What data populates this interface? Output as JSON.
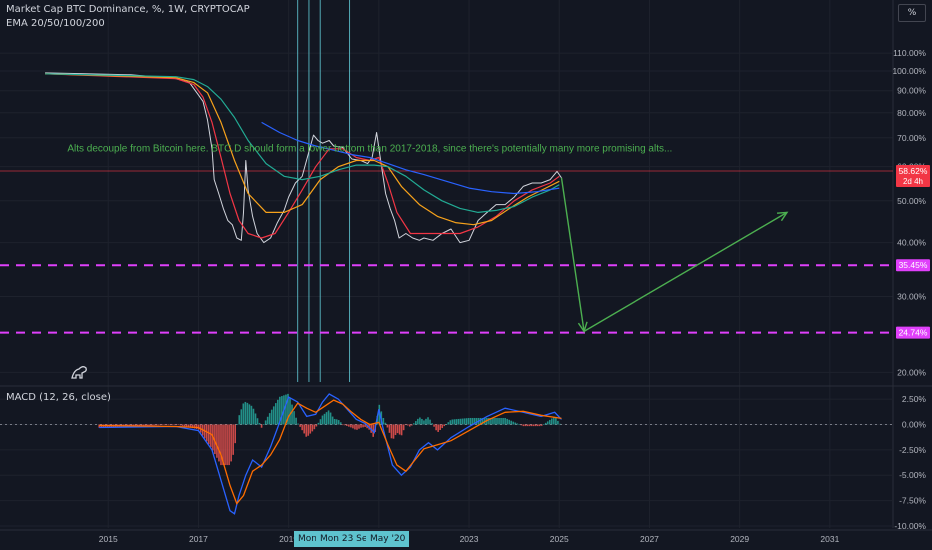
{
  "header": {
    "symbol_line": "Market Cap BTC Dominance, %, 1W, CRYPTOCAP",
    "ema_line": "EMA 20/50/100/200",
    "macd_line": "MACD (12, 26, close)",
    "percent_toggle": "%"
  },
  "annotation": "Alts decouple from Bitcoin here. BTC.D should form a lower bottom than 2017-2018, since there's potentially many more promising alts...",
  "crosshair_tip": {
    "left_label": "Mon",
    "mid_label": "Mon 23 Sep '19",
    "right_label": "May '20"
  },
  "colors": {
    "background": "#131722",
    "price": "#d1d4dc",
    "ema20": "#f23645",
    "ema50": "#f7a21b",
    "ema100": "#22ab94",
    "ema200": "#2962ff",
    "dashed_level": "#e040fb",
    "arrow": "#4caf50",
    "macd_line": "#2962ff",
    "signal_line": "#ff6d00",
    "hist_pos": "#26a69a",
    "hist_neg": "#ef5350"
  },
  "chart_data": {
    "type": "line",
    "main_pane": {
      "y_scale": "log",
      "ylim": [
        19,
        118
      ],
      "y_ticks": [
        {
          "value": 110,
          "label": "110.00%"
        },
        {
          "value": 100,
          "label": "100.00%"
        },
        {
          "value": 90,
          "label": "90.00%"
        },
        {
          "value": 80,
          "label": "80.00%"
        },
        {
          "value": 70,
          "label": "70.00%"
        },
        {
          "value": 60,
          "label": "60.00%"
        },
        {
          "value": 50,
          "label": "50.00%"
        },
        {
          "value": 40,
          "label": "40.00%"
        },
        {
          "value": 30,
          "label": "30.00%"
        },
        {
          "value": 20,
          "label": "20.00%"
        }
      ],
      "x_ticks": [
        {
          "value": 2015,
          "label": "2015"
        },
        {
          "value": 2017,
          "label": "2017"
        },
        {
          "value": 2019,
          "label": "2019"
        },
        {
          "value": 2021,
          "label": "2021"
        },
        {
          "value": 2023,
          "label": "2023"
        },
        {
          "value": 2025,
          "label": "2025"
        },
        {
          "value": 2027,
          "label": "2027"
        },
        {
          "value": 2029,
          "label": "2029"
        },
        {
          "value": 2031,
          "label": "2031"
        }
      ],
      "xlim": [
        2012.6,
        2032.4
      ],
      "series": [
        {
          "key": "price",
          "x": [
            2013.6,
            2014.5,
            2015.5,
            2016.5,
            2016.8,
            2017.0,
            2017.1,
            2017.2,
            2017.3,
            2017.35,
            2017.45,
            2017.55,
            2017.65,
            2017.75,
            2017.85,
            2017.95,
            2018.0,
            2018.05,
            2018.1,
            2018.2,
            2018.3,
            2018.45,
            2018.6,
            2018.75,
            2018.9,
            2019.0,
            2019.15,
            2019.3,
            2019.45,
            2019.55,
            2019.65,
            2019.75,
            2019.9,
            2020.0,
            2020.2,
            2020.4,
            2020.6,
            2020.75,
            2020.85,
            2020.95,
            2021.05,
            2021.15,
            2021.25,
            2021.35,
            2021.45,
            2021.6,
            2021.75,
            2021.9,
            2022.0,
            2022.2,
            2022.4,
            2022.6,
            2022.8,
            2023.0,
            2023.2,
            2023.4,
            2023.6,
            2023.8,
            2024.0,
            2024.2,
            2024.4,
            2024.6,
            2024.8,
            2024.95,
            2025.05
          ],
          "y": [
            99,
            98.5,
            98,
            96,
            94,
            88,
            85,
            77,
            66,
            56,
            52,
            48,
            45,
            44,
            41,
            40.5,
            47,
            62,
            53,
            46,
            42,
            40,
            41,
            44.5,
            47.5,
            51,
            55,
            57,
            65,
            71,
            69,
            68,
            69,
            67,
            66.5,
            62.5,
            62,
            61,
            63,
            72,
            61,
            52,
            48,
            45,
            41,
            42,
            41,
            40.5,
            41,
            40.5,
            42,
            43,
            40,
            40.5,
            45,
            47,
            49,
            49,
            51,
            54,
            55,
            55,
            56,
            58.5,
            56.5
          ]
        },
        {
          "key": "ema20",
          "x": [
            2013.6,
            2016.5,
            2016.9,
            2017.1,
            2017.3,
            2017.5,
            2017.7,
            2017.9,
            2018.1,
            2018.4,
            2018.7,
            2019.0,
            2019.3,
            2019.6,
            2019.9,
            2020.2,
            2020.5,
            2020.8,
            2021.0,
            2021.2,
            2021.4,
            2021.7,
            2022.0,
            2022.4,
            2022.8,
            2023.2,
            2023.6,
            2024.0,
            2024.4,
            2024.8,
            2025.0
          ],
          "y": [
            98.5,
            96,
            93,
            87,
            76,
            63,
            52,
            45,
            42,
            41,
            42,
            47,
            53,
            60,
            66,
            66,
            63,
            62,
            63,
            55,
            47,
            42,
            42,
            42,
            42,
            43.5,
            46,
            50,
            53,
            55,
            57
          ]
        },
        {
          "key": "ema50",
          "x": [
            2013.6,
            2016.5,
            2016.9,
            2017.2,
            2017.5,
            2017.8,
            2018.1,
            2018.5,
            2018.9,
            2019.3,
            2019.7,
            2020.1,
            2020.5,
            2020.9,
            2021.2,
            2021.5,
            2021.9,
            2022.3,
            2022.7,
            2023.1,
            2023.5,
            2023.9,
            2024.3,
            2024.7,
            2025.0
          ],
          "y": [
            98.5,
            96.5,
            94,
            89,
            76,
            62,
            52,
            47,
            47,
            49,
            56,
            60,
            62,
            62,
            60,
            54,
            49,
            46,
            44.5,
            44,
            45,
            48,
            51,
            53.5,
            55.5
          ]
        },
        {
          "key": "ema100",
          "x": [
            2013.6,
            2016.5,
            2016.9,
            2017.2,
            2017.5,
            2017.8,
            2018.1,
            2018.5,
            2018.9,
            2019.3,
            2019.7,
            2020.1,
            2020.5,
            2020.9,
            2021.2,
            2021.6,
            2022.0,
            2022.4,
            2022.8,
            2023.2,
            2023.6,
            2024.0,
            2024.4,
            2024.8,
            2025.0
          ],
          "y": [
            98.5,
            97,
            95.5,
            92,
            86,
            78,
            69,
            61,
            57,
            56,
            57,
            59,
            60.5,
            60.5,
            60,
            57,
            53,
            50,
            48,
            47,
            47.5,
            48.5,
            51,
            53,
            54.5
          ]
        },
        {
          "key": "ema200",
          "x": [
            2018.4,
            2018.8,
            2019.2,
            2019.6,
            2020.0,
            2020.4,
            2020.8,
            2021.2,
            2021.6,
            2022.0,
            2022.5,
            2023.0,
            2023.5,
            2024.0,
            2024.5,
            2025.0
          ],
          "y": [
            76,
            72,
            69,
            67,
            65.5,
            64,
            63,
            61,
            59,
            57.5,
            55.5,
            53.5,
            52.5,
            52,
            52.5,
            53.5
          ]
        }
      ],
      "price_labels": [
        {
          "value": 58.62,
          "label": "58.62%",
          "sub": "2d 4h"
        },
        {
          "value": 35.45,
          "label": "35.45%"
        },
        {
          "value": 24.74,
          "label": "24.74%"
        }
      ],
      "dashed_levels": [
        35.45,
        24.74
      ],
      "hline": 58.62,
      "projection_arrow": [
        {
          "x": 2025.05,
          "y": 56.5
        },
        {
          "x": 2025.55,
          "y": 24.9
        },
        {
          "x": 2030.05,
          "y": 47
        }
      ],
      "vertical_lines": [
        2019.2,
        2019.45,
        2019.7,
        2020.35
      ]
    },
    "macd_pane": {
      "ylim": [
        -10.2,
        3.2
      ],
      "y_ticks": [
        {
          "value": 2.5,
          "label": "2.50%"
        },
        {
          "value": 0,
          "label": "0.00%"
        },
        {
          "value": -2.5,
          "label": "-2.50%"
        },
        {
          "value": -5,
          "label": "-5.00%"
        },
        {
          "value": -7.5,
          "label": "-7.50%"
        },
        {
          "value": -10,
          "label": "-10.00%"
        }
      ],
      "macd": {
        "x": [
          2014.8,
          2016.5,
          2017.0,
          2017.3,
          2017.5,
          2017.7,
          2017.8,
          2017.9,
          2018.05,
          2018.2,
          2018.4,
          2018.6,
          2018.8,
          2019.0,
          2019.2,
          2019.4,
          2019.6,
          2019.75,
          2019.9,
          2020.1,
          2020.3,
          2020.5,
          2020.7,
          2020.9,
          2021.0,
          2021.1,
          2021.3,
          2021.5,
          2021.7,
          2021.9,
          2022.1,
          2022.3,
          2022.6,
          2023.0,
          2023.4,
          2023.8,
          2024.2,
          2024.6,
          2024.9,
          2025.05
        ],
        "y": [
          -0.3,
          -0.2,
          -0.6,
          -2.5,
          -5.5,
          -8.5,
          -8.8,
          -7.0,
          -5.0,
          -3.5,
          -4.2,
          -2.2,
          0.2,
          2.7,
          2.2,
          0.8,
          1.0,
          2.2,
          3.0,
          2.5,
          1.5,
          0.5,
          0.1,
          -0.8,
          1.5,
          -0.5,
          -4.0,
          -5.0,
          -4.2,
          -2.5,
          -1.8,
          -2.5,
          -1.3,
          -0.2,
          0.8,
          1.6,
          1.2,
          0.8,
          1.2,
          0.5
        ]
      },
      "signal": {
        "x": [
          2014.8,
          2016.5,
          2017.0,
          2017.3,
          2017.5,
          2017.7,
          2017.85,
          2018.0,
          2018.2,
          2018.4,
          2018.6,
          2018.8,
          2019.0,
          2019.2,
          2019.4,
          2019.6,
          2019.8,
          2020.0,
          2020.2,
          2020.4,
          2020.6,
          2020.8,
          2021.0,
          2021.2,
          2021.4,
          2021.6,
          2021.8,
          2022.0,
          2022.3,
          2022.6,
          2023.0,
          2023.4,
          2023.8,
          2024.2,
          2024.6,
          2025.05
        ],
        "y": [
          -0.1,
          -0.2,
          -0.3,
          -1.0,
          -3.0,
          -6.0,
          -7.8,
          -7.0,
          -4.6,
          -4.0,
          -3.0,
          -1.5,
          0.8,
          2.1,
          1.6,
          1.2,
          1.8,
          2.4,
          2.0,
          1.2,
          0.5,
          0.0,
          0.2,
          -2.0,
          -4.0,
          -4.6,
          -3.5,
          -2.4,
          -2.0,
          -1.6,
          -0.6,
          0.4,
          1.2,
          1.3,
          0.9,
          0.6
        ]
      }
    },
    "annotation_point": {
      "x": 2017.6,
      "y": 65
    }
  }
}
